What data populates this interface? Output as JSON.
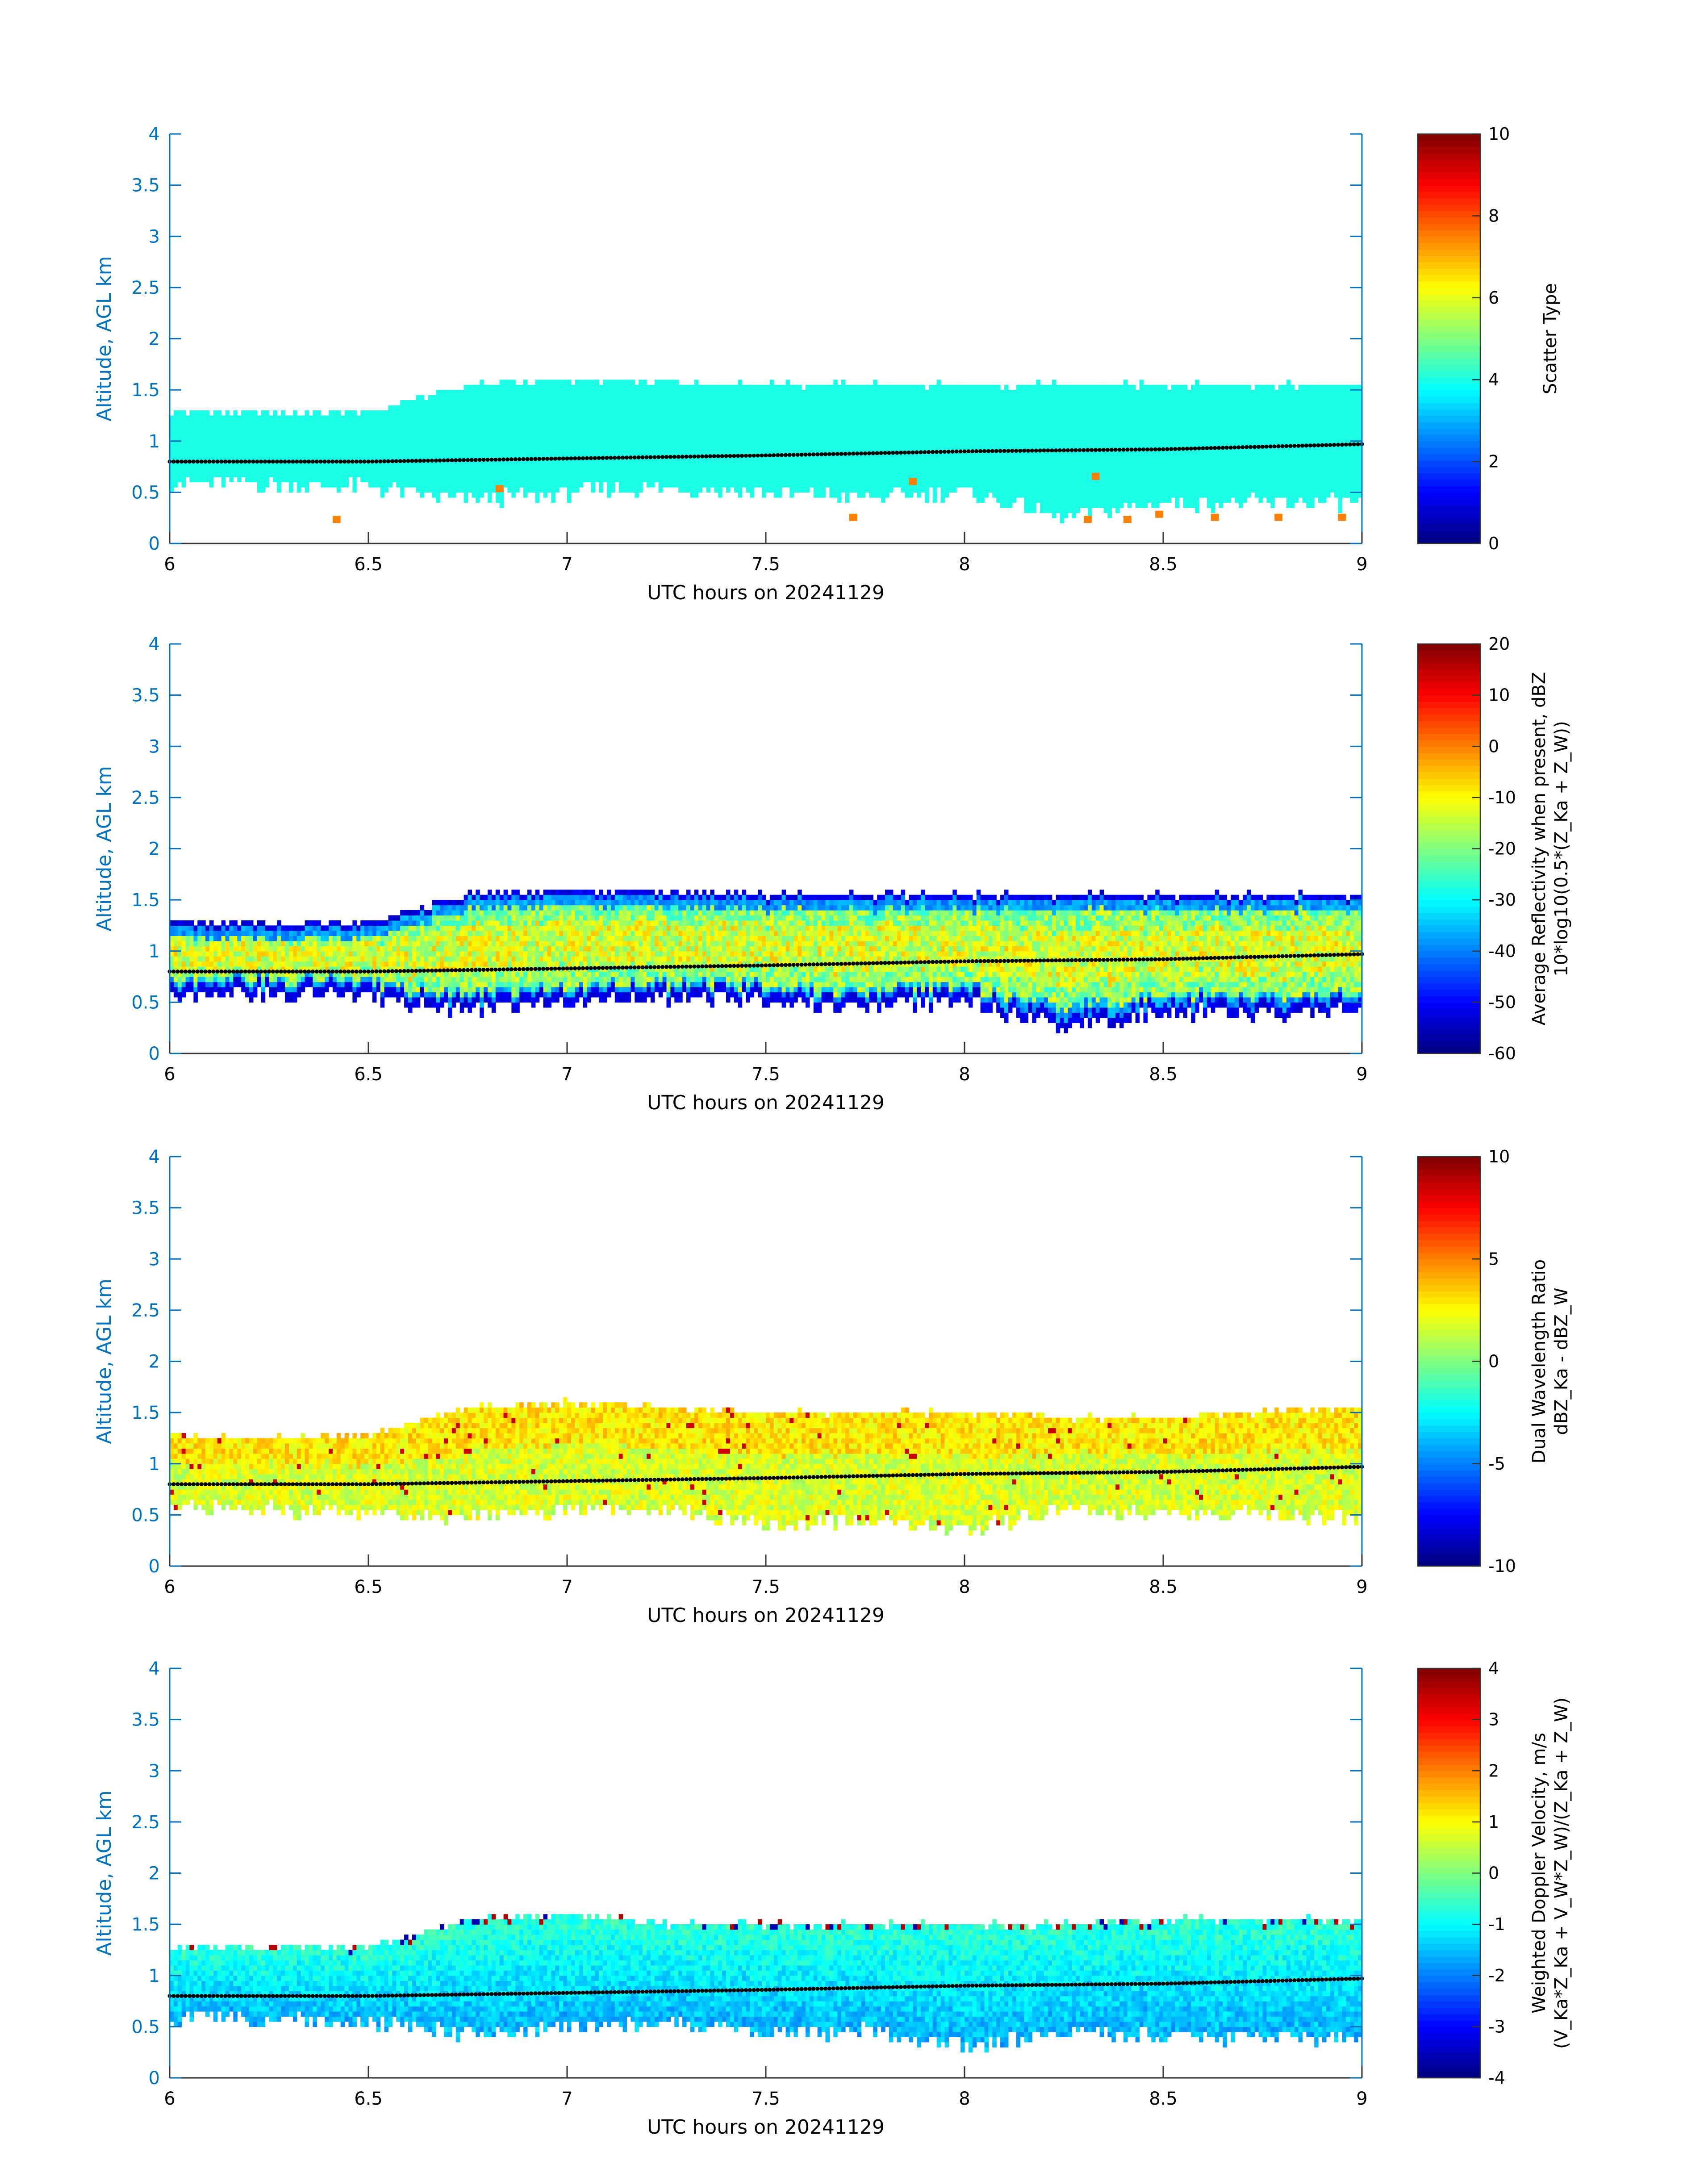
{
  "chart_data": [
    {
      "type": "heatmap",
      "title": "",
      "xlabel": "UTC hours on 20241129",
      "ylabel": "Altitude, AGL km",
      "xlim": [
        6,
        9
      ],
      "ylim": [
        0,
        4
      ],
      "x_ticks": [
        "6",
        "6.5",
        "7",
        "7.5",
        "8",
        "8.5",
        "9"
      ],
      "y_ticks": [
        "0",
        "0.5",
        "1",
        "1.5",
        "2",
        "2.5",
        "3",
        "3.5",
        "4"
      ],
      "colorbar": {
        "label_lines": [
          "Scatter Type"
        ],
        "range": [
          0,
          10
        ],
        "ticks": [
          "0",
          "2",
          "4",
          "6",
          "8",
          "10"
        ]
      },
      "variable": "scatter_type",
      "layer": {
        "top_km": [
          1.28,
          1.28,
          1.28,
          1.55,
          1.6,
          1.58,
          1.55,
          1.55,
          1.55,
          1.55,
          1.55,
          1.55,
          1.55
        ],
        "bottom_km": [
          0.6,
          0.58,
          0.55,
          0.42,
          0.5,
          0.55,
          0.5,
          0.45,
          0.5,
          0.25,
          0.4,
          0.4,
          0.4
        ],
        "profile_x": [
          6.0,
          6.25,
          6.5,
          6.75,
          7.0,
          7.25,
          7.5,
          7.75,
          8.0,
          8.25,
          8.5,
          8.75,
          9.0
        ],
        "fill_value": 4
      },
      "sparse_points": [
        {
          "x": 6.41,
          "y": 0.2,
          "value": 7.5
        },
        {
          "x": 6.82,
          "y": 0.5,
          "value": 7.5
        },
        {
          "x": 7.71,
          "y": 0.22,
          "value": 7.5
        },
        {
          "x": 7.86,
          "y": 0.57,
          "value": 7.5
        },
        {
          "x": 8.3,
          "y": 0.2,
          "value": 7.5
        },
        {
          "x": 8.32,
          "y": 0.62,
          "value": 7.5
        },
        {
          "x": 8.4,
          "y": 0.2,
          "value": 7.5
        },
        {
          "x": 8.48,
          "y": 0.25,
          "value": 7.5
        },
        {
          "x": 8.62,
          "y": 0.22,
          "value": 7.5
        },
        {
          "x": 8.78,
          "y": 0.22,
          "value": 7.5
        },
        {
          "x": 8.94,
          "y": 0.22,
          "value": 7.5
        }
      ],
      "melting_layer": {
        "x": [
          6.0,
          6.5,
          7.0,
          7.5,
          8.0,
          8.5,
          9.0
        ],
        "y": [
          0.8,
          0.8,
          0.83,
          0.86,
          0.9,
          0.92,
          0.97
        ]
      }
    },
    {
      "type": "heatmap",
      "title": "",
      "xlabel": "UTC hours on 20241129",
      "ylabel": "Altitude, AGL km",
      "xlim": [
        6,
        9
      ],
      "ylim": [
        0,
        4
      ],
      "x_ticks": [
        "6",
        "6.5",
        "7",
        "7.5",
        "8",
        "8.5",
        "9"
      ],
      "y_ticks": [
        "0",
        "0.5",
        "1",
        "1.5",
        "2",
        "2.5",
        "3",
        "3.5",
        "4"
      ],
      "colorbar": {
        "label_lines": [
          "Average Reflectivity when present, dBZ",
          "10*log10(0.5*(Z_Ka + Z_W))"
        ],
        "range": [
          -60,
          20
        ],
        "ticks": [
          "-60",
          "-50",
          "-40",
          "-30",
          "-20",
          "-10",
          "0",
          "10",
          "20"
        ]
      },
      "variable": "reflectivity",
      "layer": {
        "top_km": [
          1.28,
          1.28,
          1.28,
          1.55,
          1.6,
          1.58,
          1.55,
          1.55,
          1.55,
          1.55,
          1.55,
          1.55,
          1.55
        ],
        "bottom_km": [
          0.6,
          0.58,
          0.55,
          0.42,
          0.5,
          0.55,
          0.5,
          0.45,
          0.5,
          0.25,
          0.4,
          0.4,
          0.4
        ],
        "profile_x": [
          6.0,
          6.25,
          6.5,
          6.75,
          7.0,
          7.25,
          7.5,
          7.75,
          8.0,
          8.25,
          8.5,
          8.75,
          9.0
        ],
        "core_value": -15,
        "edge_value": -55
      },
      "melting_layer": {
        "x": [
          6.0,
          6.5,
          7.0,
          7.5,
          8.0,
          8.5,
          9.0
        ],
        "y": [
          0.8,
          0.8,
          0.83,
          0.86,
          0.9,
          0.92,
          0.97
        ]
      }
    },
    {
      "type": "heatmap",
      "title": "",
      "xlabel": "UTC hours on 20241129",
      "ylabel": "Altitude, AGL km",
      "xlim": [
        6,
        9
      ],
      "ylim": [
        0,
        4
      ],
      "x_ticks": [
        "6",
        "6.5",
        "7",
        "7.5",
        "8",
        "8.5",
        "9"
      ],
      "y_ticks": [
        "0",
        "0.5",
        "1",
        "1.5",
        "2",
        "2.5",
        "3",
        "3.5",
        "4"
      ],
      "colorbar": {
        "label_lines": [
          "Dual Wavelength Ratio",
          "dBZ_Ka - dBZ_W"
        ],
        "range": [
          -10,
          10
        ],
        "ticks": [
          "-10",
          "-5",
          "0",
          "5",
          "10"
        ]
      },
      "variable": "dwr",
      "layer": {
        "top_km": [
          1.28,
          1.25,
          1.28,
          1.55,
          1.6,
          1.55,
          1.5,
          1.5,
          1.5,
          1.45,
          1.45,
          1.5,
          1.55
        ],
        "bottom_km": [
          0.6,
          0.55,
          0.5,
          0.5,
          0.55,
          0.55,
          0.4,
          0.45,
          0.35,
          0.55,
          0.5,
          0.5,
          0.45
        ],
        "profile_x": [
          6.0,
          6.25,
          6.5,
          6.75,
          7.0,
          7.25,
          7.5,
          7.75,
          8.0,
          8.25,
          8.5,
          8.75,
          9.0
        ],
        "core_value": 1.5,
        "edge_value": 1.0
      },
      "melting_layer": {
        "x": [
          6.0,
          6.5,
          7.0,
          7.5,
          8.0,
          8.5,
          9.0
        ],
        "y": [
          0.8,
          0.8,
          0.83,
          0.86,
          0.9,
          0.92,
          0.97
        ]
      }
    },
    {
      "type": "heatmap",
      "title": "",
      "xlabel": "UTC hours on 20241129",
      "ylabel": "Altitude, AGL km",
      "xlim": [
        6,
        9
      ],
      "ylim": [
        0,
        4
      ],
      "x_ticks": [
        "6",
        "6.5",
        "7",
        "7.5",
        "8",
        "8.5",
        "9"
      ],
      "y_ticks": [
        "0",
        "0.5",
        "1",
        "1.5",
        "2",
        "2.5",
        "3",
        "3.5",
        "4"
      ],
      "colorbar": {
        "label_lines": [
          "Weighted Doppler Velocity, m/s",
          "(V_Ka*Z_Ka + V_W*Z_W)/(Z_Ka + Z_W)"
        ],
        "range": [
          -4,
          4
        ],
        "ticks": [
          "-4",
          "-3",
          "-2",
          "-1",
          "0",
          "1",
          "2",
          "3",
          "4"
        ]
      },
      "variable": "doppler_velocity",
      "layer": {
        "top_km": [
          1.28,
          1.28,
          1.28,
          1.55,
          1.6,
          1.5,
          1.5,
          1.5,
          1.5,
          1.5,
          1.55,
          1.55,
          1.55
        ],
        "bottom_km": [
          0.6,
          0.58,
          0.55,
          0.42,
          0.5,
          0.55,
          0.45,
          0.45,
          0.3,
          0.45,
          0.4,
          0.4,
          0.35
        ],
        "profile_x": [
          6.0,
          6.25,
          6.5,
          6.75,
          7.0,
          7.25,
          7.5,
          7.75,
          8.0,
          8.25,
          8.5,
          8.75,
          9.0
        ],
        "upper_value": -0.6,
        "lower_value": -1.6
      },
      "melting_layer": {
        "x": [
          6.0,
          6.5,
          7.0,
          7.5,
          8.0,
          8.5,
          9.0
        ],
        "y": [
          0.8,
          0.8,
          0.83,
          0.86,
          0.9,
          0.92,
          0.97
        ]
      }
    }
  ],
  "colors": {
    "axis": "#0072BD",
    "background": "#ffffff",
    "melting_layer": "#000000"
  }
}
